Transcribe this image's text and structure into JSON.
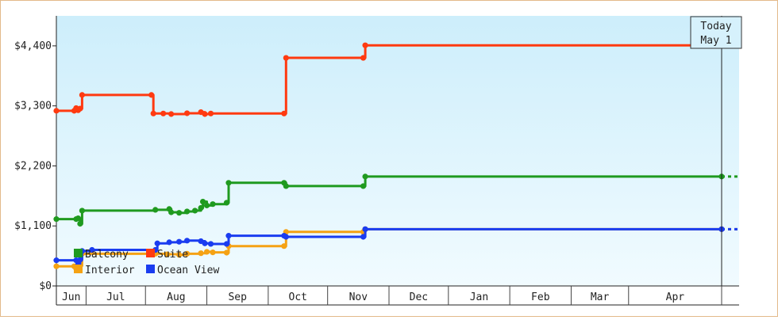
{
  "chart_data": {
    "type": "line",
    "title": "",
    "xlabel": "",
    "ylabel": "",
    "ylim": [
      0,
      4950
    ],
    "y_ticks": [
      {
        "value": 0,
        "label": "$0"
      },
      {
        "value": 1100,
        "label": "$1,100"
      },
      {
        "value": 2200,
        "label": "$2,200"
      },
      {
        "value": 3300,
        "label": "$3,300"
      },
      {
        "value": 4400,
        "label": "$4,400"
      }
    ],
    "x_domain": [
      "2023-05-31",
      "2024-05-29"
    ],
    "x_ticks": [
      {
        "label": "Jun",
        "start": "2023-05-31",
        "end": "2023-06-15"
      },
      {
        "label": "Jul",
        "start": "2023-06-15",
        "end": "2023-07-15"
      },
      {
        "label": "Aug",
        "start": "2023-07-15",
        "end": "2023-08-15"
      },
      {
        "label": "Sep",
        "start": "2023-08-15",
        "end": "2023-09-15"
      },
      {
        "label": "Oct",
        "start": "2023-09-15",
        "end": "2023-10-15"
      },
      {
        "label": "Nov",
        "start": "2023-10-15",
        "end": "2023-11-15"
      },
      {
        "label": "Dec",
        "start": "2023-11-15",
        "end": "2023-12-15"
      },
      {
        "label": "Jan",
        "start": "2023-12-15",
        "end": "2024-01-15"
      },
      {
        "label": "Feb",
        "start": "2024-01-15",
        "end": "2024-02-15"
      },
      {
        "label": "Mar",
        "start": "2024-02-15",
        "end": "2024-03-15"
      },
      {
        "label": "Apr",
        "start": "2024-03-15",
        "end": "2024-05-01"
      }
    ],
    "today": {
      "date": "2024-05-01",
      "label_line1": "Today",
      "label_line2": "May 1"
    },
    "grid": false,
    "background": {
      "top": "#cdeefb",
      "bottom": "#f1fbff"
    },
    "legend_position": "bottom-left",
    "series": [
      {
        "name": "Balcony",
        "color": "#1f9a1f",
        "points": [
          [
            "2023-05-31",
            1225
          ],
          [
            "2023-06-10",
            1225
          ],
          [
            "2023-06-11",
            1240
          ],
          [
            "2023-06-12",
            1140
          ],
          [
            "2023-06-13",
            1380
          ],
          [
            "2023-07-20",
            1395
          ],
          [
            "2023-07-27",
            1410
          ],
          [
            "2023-07-28",
            1350
          ],
          [
            "2023-08-01",
            1340
          ],
          [
            "2023-08-05",
            1365
          ],
          [
            "2023-08-09",
            1380
          ],
          [
            "2023-08-12",
            1430
          ],
          [
            "2023-08-13",
            1545
          ],
          [
            "2023-08-15",
            1475
          ],
          [
            "2023-08-18",
            1500
          ],
          [
            "2023-08-25",
            1525
          ],
          [
            "2023-08-26",
            1890
          ],
          [
            "2023-09-23",
            1890
          ],
          [
            "2023-09-24",
            1830
          ],
          [
            "2023-11-02",
            1830
          ],
          [
            "2023-11-03",
            2005
          ],
          [
            "2024-05-01",
            2005
          ]
        ]
      },
      {
        "name": "Suite",
        "color": "#ff3a10",
        "points": [
          [
            "2023-05-31",
            3210
          ],
          [
            "2023-06-09",
            3210
          ],
          [
            "2023-06-10",
            3260
          ],
          [
            "2023-06-11",
            3220
          ],
          [
            "2023-06-12",
            3250
          ],
          [
            "2023-06-13",
            3500
          ],
          [
            "2023-07-18",
            3500
          ],
          [
            "2023-07-19",
            3160
          ],
          [
            "2023-07-24",
            3160
          ],
          [
            "2023-07-28",
            3150
          ],
          [
            "2023-08-05",
            3165
          ],
          [
            "2023-08-12",
            3185
          ],
          [
            "2023-08-14",
            3150
          ],
          [
            "2023-08-17",
            3160
          ],
          [
            "2023-09-23",
            3160
          ],
          [
            "2023-09-24",
            4180
          ],
          [
            "2023-11-02",
            4180
          ],
          [
            "2023-11-03",
            4410
          ],
          [
            "2024-05-01",
            4410
          ]
        ]
      },
      {
        "name": "Interior",
        "color": "#f5a214",
        "points": [
          [
            "2023-05-31",
            360
          ],
          [
            "2023-06-09",
            360
          ],
          [
            "2023-06-10",
            320
          ],
          [
            "2023-06-12",
            370
          ],
          [
            "2023-06-13",
            590
          ],
          [
            "2023-07-20",
            590
          ],
          [
            "2023-07-26",
            580
          ],
          [
            "2023-08-01",
            570
          ],
          [
            "2023-08-05",
            590
          ],
          [
            "2023-08-12",
            600
          ],
          [
            "2023-08-15",
            625
          ],
          [
            "2023-08-18",
            615
          ],
          [
            "2023-08-25",
            610
          ],
          [
            "2023-08-26",
            730
          ],
          [
            "2023-09-23",
            730
          ],
          [
            "2023-09-24",
            990
          ],
          [
            "2023-11-02",
            990
          ],
          [
            "2023-11-03",
            1040
          ],
          [
            "2024-05-01",
            1040
          ]
        ]
      },
      {
        "name": "Ocean View",
        "color": "#1a3cf0",
        "points": [
          [
            "2023-05-31",
            470
          ],
          [
            "2023-06-10",
            470
          ],
          [
            "2023-06-11",
            400
          ],
          [
            "2023-06-12",
            480
          ],
          [
            "2023-06-13",
            640
          ],
          [
            "2023-06-18",
            660
          ],
          [
            "2023-07-20",
            660
          ],
          [
            "2023-07-21",
            780
          ],
          [
            "2023-07-27",
            800
          ],
          [
            "2023-08-01",
            810
          ],
          [
            "2023-08-05",
            830
          ],
          [
            "2023-08-12",
            820
          ],
          [
            "2023-08-14",
            780
          ],
          [
            "2023-08-17",
            770
          ],
          [
            "2023-08-25",
            770
          ],
          [
            "2023-08-26",
            920
          ],
          [
            "2023-09-23",
            920
          ],
          [
            "2023-09-24",
            900
          ],
          [
            "2023-11-02",
            900
          ],
          [
            "2023-11-03",
            1040
          ],
          [
            "2024-05-01",
            1040
          ]
        ]
      }
    ]
  }
}
